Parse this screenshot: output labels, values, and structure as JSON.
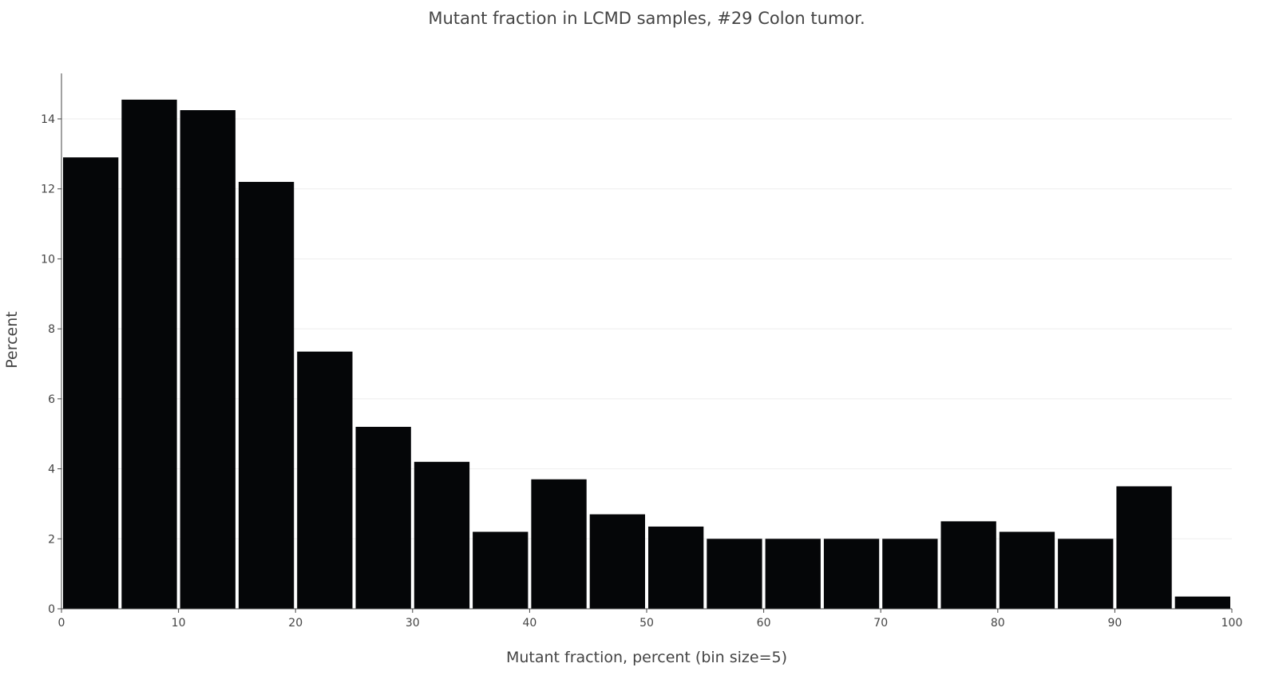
{
  "chart_data": {
    "type": "bar",
    "title": "Mutant fraction in LCMD samples,  #29 Colon tumor.",
    "xlabel": "Mutant fraction, percent (bin size=5)",
    "ylabel": "Percent",
    "bin_size": 5,
    "bins": [
      {
        "start": 0,
        "end": 5,
        "value": 12.9
      },
      {
        "start": 5,
        "end": 10,
        "value": 14.55
      },
      {
        "start": 10,
        "end": 15,
        "value": 14.25
      },
      {
        "start": 15,
        "end": 20,
        "value": 12.2
      },
      {
        "start": 20,
        "end": 25,
        "value": 7.35
      },
      {
        "start": 25,
        "end": 30,
        "value": 5.2
      },
      {
        "start": 30,
        "end": 35,
        "value": 4.2
      },
      {
        "start": 35,
        "end": 40,
        "value": 2.2
      },
      {
        "start": 40,
        "end": 45,
        "value": 3.7
      },
      {
        "start": 45,
        "end": 50,
        "value": 2.7
      },
      {
        "start": 50,
        "end": 55,
        "value": 2.35
      },
      {
        "start": 55,
        "end": 60,
        "value": 2.0
      },
      {
        "start": 60,
        "end": 65,
        "value": 2.0
      },
      {
        "start": 65,
        "end": 70,
        "value": 2.0
      },
      {
        "start": 70,
        "end": 75,
        "value": 2.0
      },
      {
        "start": 75,
        "end": 80,
        "value": 2.5
      },
      {
        "start": 80,
        "end": 85,
        "value": 2.2
      },
      {
        "start": 85,
        "end": 90,
        "value": 2.0
      },
      {
        "start": 90,
        "end": 95,
        "value": 3.5
      },
      {
        "start": 95,
        "end": 100,
        "value": 0.35
      }
    ],
    "xlim": [
      0,
      100
    ],
    "ylim": [
      0,
      15.3
    ],
    "x_ticks": [
      0,
      10,
      20,
      30,
      40,
      50,
      60,
      70,
      80,
      90,
      100
    ],
    "y_ticks": [
      0,
      2,
      4,
      6,
      8,
      10,
      12,
      14
    ],
    "grid": "horizontal",
    "bar_color": "#050608"
  }
}
